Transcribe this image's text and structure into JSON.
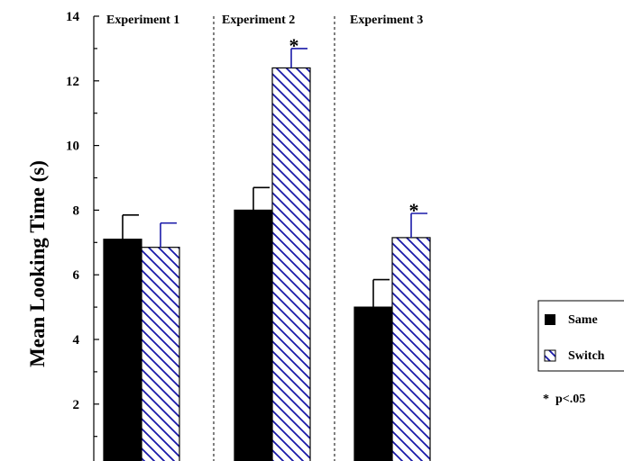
{
  "chart_data": {
    "type": "bar",
    "ylabel": "Mean Looking Time (s)",
    "ylim": [
      0,
      14
    ],
    "yticks": [
      2,
      4,
      6,
      8,
      10,
      12,
      14
    ],
    "y_minor_step": 1,
    "grid": false,
    "legend_position": "right",
    "groups": [
      "Experiment 1",
      "Experiment 2",
      "Experiment 3"
    ],
    "series": [
      {
        "name": "Same",
        "fill": "#000000",
        "pattern": "solid",
        "values": [
          7.1,
          8.0,
          5.0
        ],
        "error": [
          0.75,
          0.7,
          0.85
        ]
      },
      {
        "name": "Switch",
        "fill": "#ffffff",
        "hatch_color": "#1a1aa8",
        "pattern": "diagonal-hatch",
        "values": [
          6.85,
          12.4,
          7.15
        ],
        "error": [
          0.75,
          0.6,
          0.75
        ]
      }
    ],
    "significance_marker": "*",
    "significant": [
      [
        false,
        false
      ],
      [
        false,
        true
      ],
      [
        false,
        true
      ]
    ],
    "note": "*  p<.05",
    "colors": {
      "axis": "#000000",
      "error_bar_same": "#000000",
      "error_bar_switch": "#1a1aa8"
    }
  }
}
